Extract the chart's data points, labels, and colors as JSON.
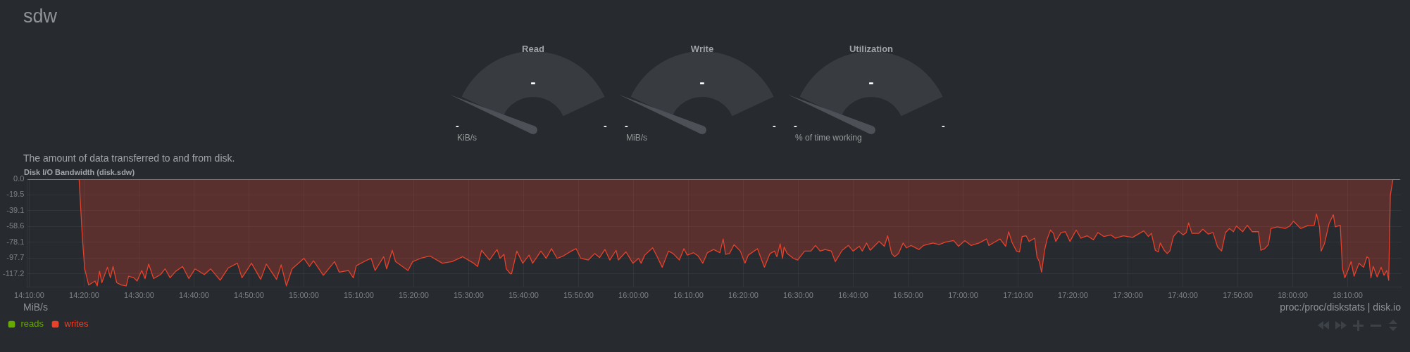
{
  "chart_data": [
    {
      "type": "other",
      "title": "sdw",
      "annotations": [
        "Read",
        "-",
        "-",
        "-",
        "KiB/s",
        "Write",
        "-",
        "-",
        "-",
        "MiB/s",
        "Utilization",
        "-",
        "-",
        "-",
        "% of time working"
      ]
    },
    {
      "type": "area",
      "title": "Disk I/O Bandwidth (disk.sdw)",
      "subtitle": "The amount of data transferred to and from disk.",
      "annotations": [
        "MiB/s",
        "proc:/proc/diskstats | disk.io"
      ],
      "xlim": [
        14.16,
        18.33
      ],
      "xticks": [
        {
          "value": 14.1667,
          "label": "14:10:00"
        },
        {
          "value": 14.3333,
          "label": "14:20:00"
        },
        {
          "value": 14.5,
          "label": "14:30:00"
        },
        {
          "value": 14.6667,
          "label": "14:40:00"
        },
        {
          "value": 14.8333,
          "label": "14:50:00"
        },
        {
          "value": 15,
          "label": "15:00:00"
        },
        {
          "value": 15.1667,
          "label": "15:10:00"
        },
        {
          "value": 15.3333,
          "label": "15:20:00"
        },
        {
          "value": 15.5,
          "label": "15:30:00"
        },
        {
          "value": 15.6667,
          "label": "15:40:00"
        },
        {
          "value": 15.8333,
          "label": "15:50:00"
        },
        {
          "value": 16,
          "label": "16:00:00"
        },
        {
          "value": 16.1667,
          "label": "16:10:00"
        },
        {
          "value": 16.3333,
          "label": "16:20:00"
        },
        {
          "value": 16.5,
          "label": "16:30:00"
        },
        {
          "value": 16.6667,
          "label": "16:40:00"
        },
        {
          "value": 16.8333,
          "label": "16:50:00"
        },
        {
          "value": 17,
          "label": "17:00:00"
        },
        {
          "value": 17.1667,
          "label": "17:10:00"
        },
        {
          "value": 17.3333,
          "label": "17:20:00"
        },
        {
          "value": 17.5,
          "label": "17:30:00"
        },
        {
          "value": 17.6667,
          "label": "17:40:00"
        },
        {
          "value": 17.8333,
          "label": "17:50:00"
        },
        {
          "value": 18,
          "label": "18:00:00"
        },
        {
          "value": 18.1667,
          "label": "18:10:00"
        }
      ],
      "ylim": [
        -133,
        0
      ],
      "yticks": [
        {
          "value": 0,
          "label": "0.0"
        },
        -19.5,
        -39.1,
        -58.6,
        -78.1,
        -97.7,
        -117.2
      ],
      "grid": true,
      "legend": "bottom left",
      "marker": "none",
      "series": [
        {
          "name": "reads",
          "type": "line",
          "color": "#66aa00",
          "x": [
            14.162,
            18.325
          ],
          "values": [
            0,
            0
          ]
        },
        {
          "name": "writes",
          "type": "area",
          "color": "#e8412b",
          "x": [
            14.162,
            14.318,
            14.328,
            14.335,
            14.347,
            14.366,
            14.373,
            14.38,
            14.387,
            14.404,
            14.413,
            14.421,
            14.432,
            14.446,
            14.461,
            14.468,
            14.484,
            14.494,
            14.508,
            14.518,
            14.529,
            14.544,
            14.565,
            14.579,
            14.594,
            14.611,
            14.632,
            14.651,
            14.67,
            14.698,
            14.717,
            14.746,
            14.77,
            14.798,
            14.812,
            14.841,
            14.869,
            14.886,
            14.917,
            14.931,
            14.947,
            14.964,
            15.0,
            15.017,
            15.029,
            15.059,
            15.093,
            15.107,
            15.135,
            15.15,
            15.159,
            15.192,
            15.204,
            15.216,
            15.242,
            15.251,
            15.268,
            15.278,
            15.316,
            15.33,
            15.354,
            15.382,
            15.42,
            15.449,
            15.482,
            15.515,
            15.527,
            15.539,
            15.563,
            15.586,
            15.595,
            15.607,
            15.614,
            15.626,
            15.63,
            15.646,
            15.664,
            15.683,
            15.694,
            15.719,
            15.735,
            15.751,
            15.768,
            15.787,
            15.811,
            15.826,
            15.84,
            15.863,
            15.882,
            15.897,
            15.913,
            15.928,
            15.947,
            15.954,
            15.977,
            15.998,
            16.015,
            16.023,
            16.034,
            16.058,
            16.072,
            16.087,
            16.106,
            16.12,
            16.139,
            16.153,
            16.163,
            16.182,
            16.196,
            16.21,
            16.224,
            16.243,
            16.262,
            16.272,
            16.279,
            16.291,
            16.305,
            16.324,
            16.338,
            16.348,
            16.376,
            16.397,
            16.414,
            16.428,
            16.435,
            16.445,
            16.452,
            16.457,
            16.466,
            16.485,
            16.498,
            16.519,
            16.538,
            16.552,
            16.566,
            16.581,
            16.6,
            16.612,
            16.633,
            16.652,
            16.666,
            16.685,
            16.694,
            16.707,
            16.718,
            16.745,
            16.761,
            16.771,
            16.783,
            16.792,
            16.804,
            16.818,
            16.828,
            16.842,
            16.866,
            16.88,
            16.908,
            16.927,
            16.946,
            16.971,
            16.986,
            17.005,
            17.024,
            17.048,
            17.071,
            17.078,
            17.095,
            17.112,
            17.129,
            17.138,
            17.148,
            17.162,
            17.171,
            17.179,
            17.191,
            17.2,
            17.217,
            17.224,
            17.231,
            17.238,
            17.247,
            17.255,
            17.265,
            17.274,
            17.281,
            17.297,
            17.31,
            17.324,
            17.343,
            17.357,
            17.376,
            17.395,
            17.409,
            17.427,
            17.448,
            17.462,
            17.486,
            17.514,
            17.535,
            17.548,
            17.562,
            17.571,
            17.583,
            17.592,
            17.598,
            17.61,
            17.619,
            17.627,
            17.638,
            17.653,
            17.667,
            17.677,
            17.684,
            17.694,
            17.715,
            17.727,
            17.744,
            17.758,
            17.772,
            17.784,
            17.796,
            17.808,
            17.82,
            17.829,
            17.848,
            17.862,
            17.877,
            17.896,
            17.903,
            17.915,
            17.926,
            17.934,
            17.953,
            17.977,
            17.991,
            18.002,
            18.024,
            18.048,
            18.065,
            18.072,
            18.081,
            18.086,
            18.096,
            18.11,
            18.123,
            18.129,
            18.144,
            18.151,
            18.158,
            18.167,
            18.177,
            18.186,
            18.201,
            18.215,
            18.225,
            18.231,
            18.237,
            18.244,
            18.256,
            18.268,
            18.277,
            18.285,
            18.291,
            18.296,
            18.304,
            18.325
          ],
          "values": [
            0,
            0,
            -73,
            -111,
            -131,
            -126,
            -132,
            -114,
            -128,
            -109,
            -122,
            -108,
            -128,
            -131,
            -132,
            -120,
            -122,
            -126,
            -113,
            -123,
            -105,
            -123,
            -118,
            -111,
            -122,
            -114,
            -108,
            -123,
            -111,
            -118,
            -111,
            -125,
            -110,
            -104,
            -122,
            -104,
            -124,
            -105,
            -124,
            -106,
            -132,
            -111,
            -98,
            -108,
            -101,
            -119,
            -102,
            -115,
            -113,
            -122,
            -107,
            -100,
            -98,
            -113,
            -96,
            -111,
            -88,
            -102,
            -113,
            -102,
            -98,
            -95,
            -104,
            -102,
            -96,
            -104,
            -108,
            -88,
            -100,
            -87,
            -98,
            -93,
            -111,
            -117,
            -117,
            -89,
            -104,
            -94,
            -104,
            -89,
            -98,
            -86,
            -98,
            -95,
            -89,
            -86,
            -98,
            -100,
            -92,
            -97,
            -87,
            -100,
            -88,
            -100,
            -90,
            -104,
            -98,
            -104,
            -94,
            -85,
            -96,
            -109,
            -89,
            -92,
            -100,
            -86,
            -94,
            -91,
            -95,
            -104,
            -91,
            -87,
            -91,
            -74,
            -93,
            -92,
            -81,
            -89,
            -104,
            -94,
            -86,
            -109,
            -92,
            -89,
            -96,
            -80,
            -98,
            -84,
            -92,
            -98,
            -100,
            -89,
            -89,
            -82,
            -89,
            -87,
            -89,
            -102,
            -88,
            -82,
            -89,
            -83,
            -89,
            -79,
            -88,
            -77,
            -83,
            -70,
            -92,
            -96,
            -92,
            -79,
            -85,
            -82,
            -87,
            -82,
            -79,
            -81,
            -78,
            -76,
            -83,
            -76,
            -82,
            -79,
            -74,
            -82,
            -78,
            -74,
            -83,
            -65,
            -78,
            -89,
            -90,
            -71,
            -70,
            -77,
            -73,
            -96,
            -102,
            -115,
            -88,
            -74,
            -63,
            -67,
            -77,
            -66,
            -65,
            -77,
            -63,
            -73,
            -70,
            -75,
            -66,
            -71,
            -69,
            -73,
            -70,
            -72,
            -67,
            -64,
            -71,
            -67,
            -88,
            -90,
            -79,
            -88,
            -92,
            -89,
            -71,
            -64,
            -69,
            -66,
            -54,
            -67,
            -67,
            -62,
            -68,
            -66,
            -84,
            -89,
            -66,
            -61,
            -65,
            -58,
            -65,
            -57,
            -65,
            -65,
            -88,
            -86,
            -81,
            -61,
            -59,
            -61,
            -58,
            -52,
            -61,
            -57,
            -57,
            -43,
            -59,
            -89,
            -80,
            -55,
            -44,
            -59,
            -57,
            -111,
            -122,
            -113,
            -102,
            -120,
            -104,
            -109,
            -96,
            -98,
            -122,
            -108,
            -121,
            -109,
            -119,
            -113,
            -125,
            -20,
            0,
            0
          ]
        }
      ]
    }
  ]
}
